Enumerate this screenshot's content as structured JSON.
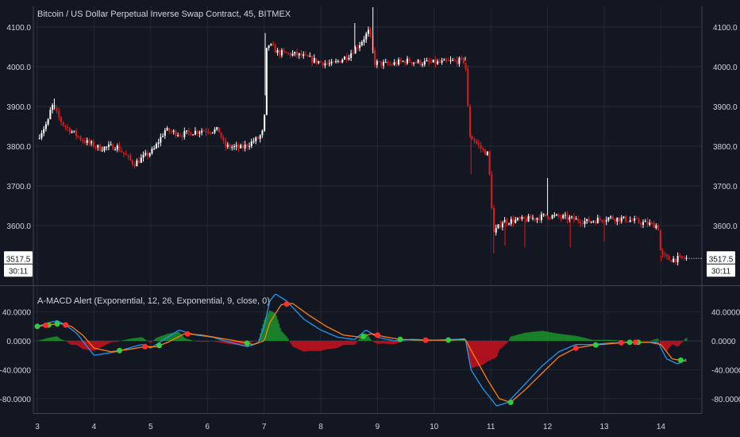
{
  "chart_data": [
    {
      "type": "candlestick",
      "title": "Bitcoin / US Dollar Perpetual Inverse Swap Contract, 45, BITMEX",
      "x_tick_labels": [
        "3",
        "4",
        "5",
        "6",
        "7",
        "8",
        "9",
        "10",
        "11",
        "12",
        "13",
        "14"
      ],
      "y_tick_labels": [
        "4100.0",
        "4000.0",
        "3900.0",
        "3800.0",
        "3700.0",
        "3600.0"
      ],
      "ylim": [
        3510,
        4160
      ],
      "grid": true,
      "last_price_label": "3517.5",
      "countdown_label": "30:11",
      "colors": {
        "up": "#ffffff",
        "down": "#e01a1a",
        "grid": "#2a2e39",
        "background": "#131722"
      },
      "close_path": [
        [
          3.0,
          3820
        ],
        [
          3.2,
          3865
        ],
        [
          3.25,
          3905
        ],
        [
          3.45,
          3855
        ],
        [
          3.8,
          3815
        ],
        [
          4.1,
          3795
        ],
        [
          4.4,
          3800
        ],
        [
          4.7,
          3755
        ],
        [
          5.05,
          3790
        ],
        [
          5.25,
          3840
        ],
        [
          5.55,
          3830
        ],
        [
          5.9,
          3840
        ],
        [
          6.2,
          3840
        ],
        [
          6.3,
          3800
        ],
        [
          6.6,
          3795
        ],
        [
          6.9,
          3820
        ],
        [
          7.0,
          3840
        ],
        [
          7.05,
          4060
        ],
        [
          7.25,
          4035
        ],
        [
          7.6,
          4030
        ],
        [
          7.9,
          4015
        ],
        [
          8.2,
          4005
        ],
        [
          8.5,
          4030
        ],
        [
          8.7,
          4060
        ],
        [
          8.85,
          4090
        ],
        [
          8.95,
          4010
        ],
        [
          9.2,
          4005
        ],
        [
          9.5,
          4015
        ],
        [
          9.8,
          4010
        ],
        [
          10.1,
          4010
        ],
        [
          10.4,
          4015
        ],
        [
          10.55,
          4015
        ],
        [
          10.62,
          3830
        ],
        [
          10.85,
          3790
        ],
        [
          10.95,
          3780
        ],
        [
          11.05,
          3580
        ],
        [
          11.2,
          3610
        ],
        [
          11.6,
          3615
        ],
        [
          12.0,
          3625
        ],
        [
          12.3,
          3620
        ],
        [
          12.7,
          3610
        ],
        [
          13.1,
          3620
        ],
        [
          13.4,
          3615
        ],
        [
          13.75,
          3605
        ],
        [
          13.95,
          3600
        ],
        [
          14.0,
          3525
        ],
        [
          14.15,
          3515
        ],
        [
          14.45,
          3517.5
        ]
      ],
      "wick_spikes": [
        [
          3.3,
          3920
        ],
        [
          7.02,
          4085
        ],
        [
          8.6,
          4110
        ],
        [
          8.92,
          4150
        ],
        [
          10.55,
          4025
        ],
        [
          10.65,
          3730
        ],
        [
          11.05,
          3530
        ],
        [
          11.25,
          3550
        ],
        [
          11.6,
          3545
        ],
        [
          12.0,
          3720
        ],
        [
          12.4,
          3545
        ],
        [
          13.0,
          3560
        ],
        [
          14.0,
          3510
        ]
      ]
    },
    {
      "type": "line",
      "title": "A-MACD Alert (Exponential, 12, 26, Exponential, 9, close, 0)",
      "y_tick_labels": [
        "40.0000",
        "0.0000",
        "-40.0000",
        "-80.0000"
      ],
      "ylim": [
        -100,
        75
      ],
      "zero_line": true,
      "colors": {
        "macd": "#2196f3",
        "signal": "#ff7f0e",
        "hist_positive": "#1b8c2a",
        "hist_negative": "#c1121f",
        "buy_dot": "#2ecc40",
        "sell_dot": "#ff2d2d"
      },
      "series": [
        {
          "key": "macd",
          "values": [
            [
              3.0,
              20
            ],
            [
              3.2,
              25
            ],
            [
              3.35,
              28
            ],
            [
              3.5,
              22
            ],
            [
              3.7,
              10
            ],
            [
              3.85,
              -5
            ],
            [
              4.0,
              -20
            ],
            [
              4.4,
              -15
            ],
            [
              4.7,
              -8
            ],
            [
              4.85,
              -5
            ],
            [
              5.0,
              -10
            ],
            [
              5.2,
              0
            ],
            [
              5.5,
              15
            ],
            [
              5.8,
              8
            ],
            [
              6.1,
              5
            ],
            [
              6.4,
              -2
            ],
            [
              6.7,
              -8
            ],
            [
              6.9,
              -3
            ],
            [
              7.0,
              20
            ],
            [
              7.1,
              55
            ],
            [
              7.2,
              65
            ],
            [
              7.4,
              55
            ],
            [
              7.7,
              30
            ],
            [
              8.0,
              15
            ],
            [
              8.3,
              5
            ],
            [
              8.6,
              2
            ],
            [
              8.8,
              15
            ],
            [
              9.0,
              5
            ],
            [
              9.3,
              0
            ],
            [
              9.6,
              2
            ],
            [
              10.0,
              1
            ],
            [
              10.4,
              2
            ],
            [
              10.55,
              3
            ],
            [
              10.65,
              -40
            ],
            [
              10.85,
              -65
            ],
            [
              11.1,
              -90
            ],
            [
              11.3,
              -85
            ],
            [
              11.6,
              -60
            ],
            [
              11.9,
              -35
            ],
            [
              12.2,
              -15
            ],
            [
              12.5,
              -5
            ],
            [
              12.8,
              -5
            ],
            [
              13.1,
              -3
            ],
            [
              13.4,
              -2
            ],
            [
              13.7,
              -2
            ],
            [
              13.95,
              -2
            ],
            [
              14.1,
              -25
            ],
            [
              14.3,
              -32
            ],
            [
              14.45,
              -25
            ]
          ]
        },
        {
          "key": "signal",
          "values": [
            [
              3.0,
              20
            ],
            [
              3.2,
              22
            ],
            [
              3.4,
              24
            ],
            [
              3.6,
              20
            ],
            [
              3.8,
              8
            ],
            [
              4.0,
              -10
            ],
            [
              4.3,
              -15
            ],
            [
              4.6,
              -12
            ],
            [
              4.9,
              -8
            ],
            [
              5.1,
              -8
            ],
            [
              5.3,
              -2
            ],
            [
              5.6,
              10
            ],
            [
              5.9,
              8
            ],
            [
              6.2,
              4
            ],
            [
              6.5,
              0
            ],
            [
              6.8,
              -5
            ],
            [
              7.0,
              0
            ],
            [
              7.1,
              25
            ],
            [
              7.3,
              50
            ],
            [
              7.5,
              52
            ],
            [
              7.8,
              35
            ],
            [
              8.1,
              20
            ],
            [
              8.4,
              8
            ],
            [
              8.7,
              5
            ],
            [
              8.9,
              10
            ],
            [
              9.1,
              6
            ],
            [
              9.4,
              2
            ],
            [
              9.8,
              1
            ],
            [
              10.2,
              1
            ],
            [
              10.55,
              2
            ],
            [
              10.7,
              -20
            ],
            [
              10.95,
              -55
            ],
            [
              11.15,
              -80
            ],
            [
              11.35,
              -85
            ],
            [
              11.6,
              -68
            ],
            [
              11.9,
              -45
            ],
            [
              12.2,
              -22
            ],
            [
              12.5,
              -10
            ],
            [
              12.8,
              -6
            ],
            [
              13.1,
              -4
            ],
            [
              13.4,
              -2
            ],
            [
              13.8,
              -2
            ],
            [
              14.0,
              -5
            ],
            [
              14.2,
              -25
            ],
            [
              14.45,
              -28
            ]
          ]
        }
      ],
      "buy_signals": [
        3.0,
        3.2,
        3.35,
        4.45,
        5.15,
        6.7,
        8.75,
        9.4,
        10.25,
        11.35,
        12.85,
        13.45,
        13.6,
        14.35
      ],
      "sell_signals": [
        3.15,
        3.5,
        4.9,
        5.65,
        7.4,
        9.0,
        9.85,
        12.5,
        13.3,
        13.55
      ]
    }
  ]
}
